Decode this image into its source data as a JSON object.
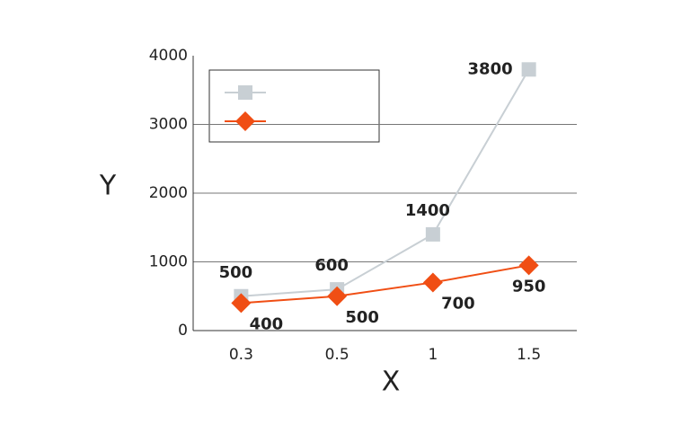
{
  "chart_data": {
    "type": "line",
    "x_label": "X",
    "y_label": "Y",
    "categories": [
      "0.3",
      "0.5",
      "1",
      "1.5"
    ],
    "series": [
      {
        "color": "#c8cfd4",
        "marker": "square",
        "values": [
          500,
          600,
          1400,
          3800
        ]
      },
      {
        "color": "#f04e14",
        "marker": "diamond",
        "values": [
          400,
          500,
          700,
          950
        ]
      }
    ],
    "ylim": [
      0,
      4000
    ],
    "yticks": [
      0,
      1000,
      2000,
      3000,
      4000
    ],
    "grid": true,
    "legend": "upper left"
  }
}
